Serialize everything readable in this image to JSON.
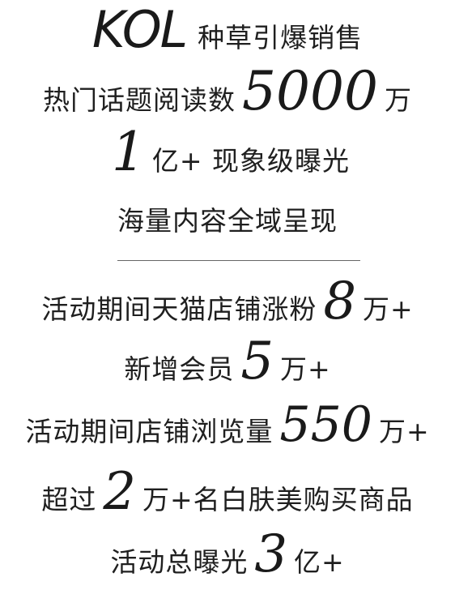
{
  "lines": {
    "l1": {
      "big": "KOL",
      "text": "种草引爆销售"
    },
    "l2": {
      "pre": "热门话题阅读数",
      "big": "5000",
      "post": "万"
    },
    "l3": {
      "big": "1",
      "post": "亿+ 现象级曝光"
    },
    "l4": {
      "text": "海量内容全域呈现"
    },
    "l5": {
      "pre": "活动期间天猫店铺涨粉",
      "big": "8",
      "post": "万+"
    },
    "l6": {
      "pre": "新增会员",
      "big": "5",
      "post": "万+"
    },
    "l7": {
      "pre": "活动期间店铺浏览量",
      "big": "550",
      "post": "万+"
    },
    "l8": {
      "pre": "超过",
      "big": "2",
      "post": "万+名白肤美购买商品"
    },
    "l9": {
      "pre": "活动总曝光",
      "big": "3",
      "post": "亿+"
    }
  }
}
